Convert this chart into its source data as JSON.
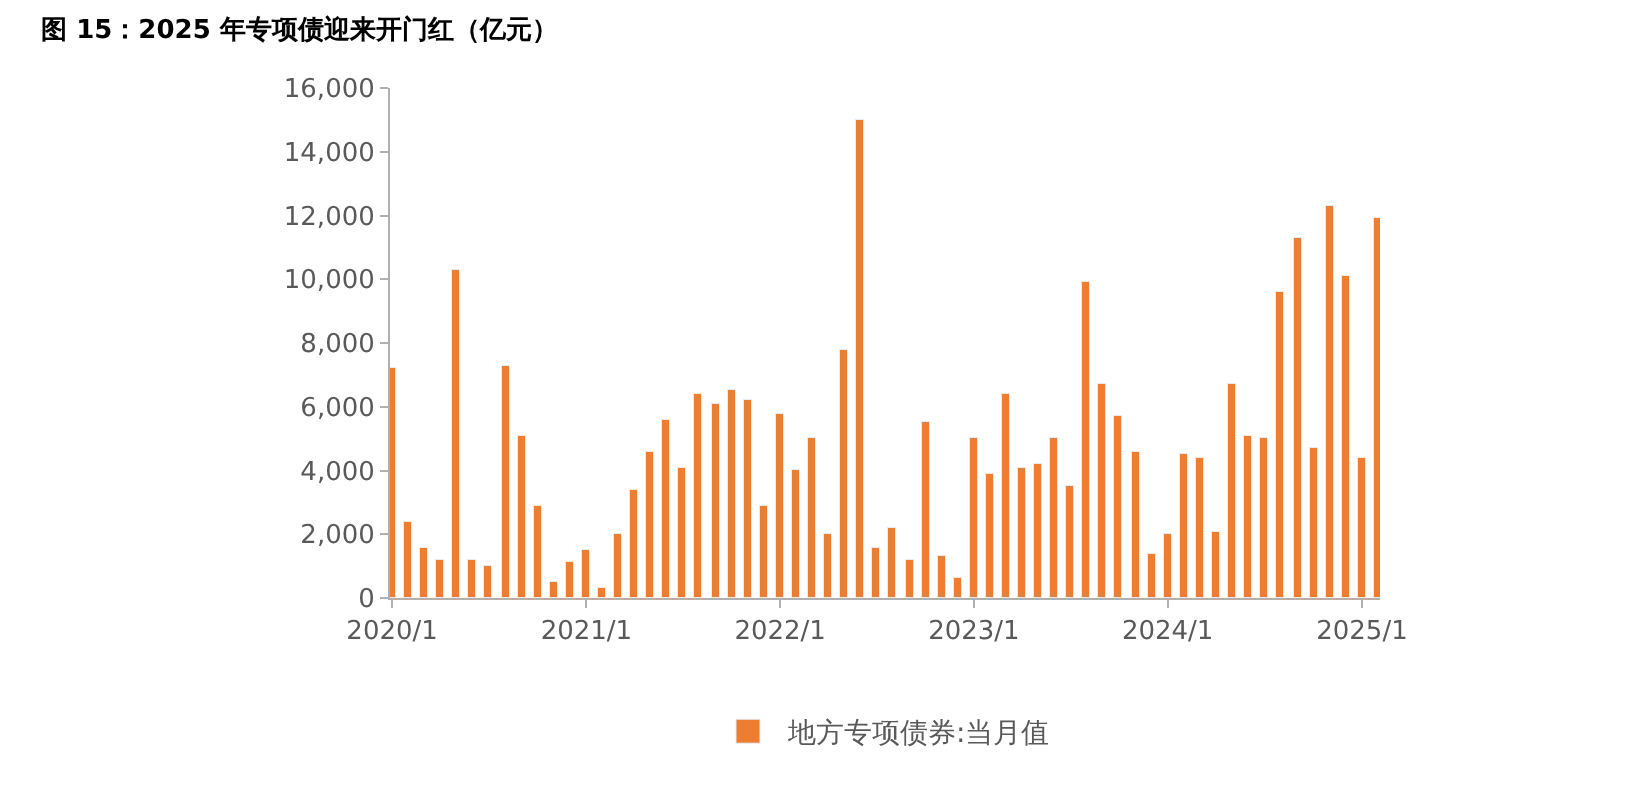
{
  "chart_data": {
    "type": "bar",
    "title": "图 15：2025 年专项债迎来开门红（亿元）",
    "x": [
      "2020-01",
      "2020-02",
      "2020-03",
      "2020-04",
      "2020-05",
      "2020-06",
      "2020-07",
      "2020-08",
      "2020-09",
      "2020-10",
      "2020-11",
      "2020-12",
      "2021-01",
      "2021-02",
      "2021-03",
      "2021-04",
      "2021-05",
      "2021-06",
      "2021-07",
      "2021-08",
      "2021-09",
      "2021-10",
      "2021-11",
      "2021-12",
      "2022-01",
      "2022-02",
      "2022-03",
      "2022-04",
      "2022-05",
      "2022-06",
      "2022-07",
      "2022-08",
      "2022-09",
      "2022-10",
      "2022-11",
      "2022-12",
      "2023-01",
      "2023-02",
      "2023-03",
      "2023-04",
      "2023-05",
      "2023-06",
      "2023-07",
      "2023-08",
      "2023-09",
      "2023-10",
      "2023-11",
      "2023-12",
      "2024-01",
      "2024-02",
      "2024-03",
      "2024-04",
      "2024-05",
      "2024-06",
      "2024-07",
      "2024-08",
      "2024-09",
      "2024-10",
      "2024-11",
      "2024-12",
      "2025-01",
      "2025-02"
    ],
    "series": [
      {
        "name": "地方专项债券:当月值",
        "color": "#ed7d31",
        "values": [
          7200,
          2400,
          1600,
          1200,
          10300,
          1200,
          1000,
          7300,
          5100,
          2900,
          500,
          1100,
          1500,
          300,
          2000,
          3400,
          4600,
          5600,
          4100,
          6400,
          6100,
          6500,
          6200,
          2900,
          5800,
          4000,
          5000,
          2000,
          7800,
          15000,
          1600,
          2200,
          1200,
          5500,
          1300,
          600,
          5000,
          3900,
          6400,
          4100,
          4200,
          5000,
          3500,
          9900,
          6700,
          5700,
          4600,
          1400,
          2000,
          4500,
          4400,
          2100,
          6700,
          5100,
          5000,
          9600,
          11300,
          4700,
          12300,
          10100,
          4400,
          11900
        ]
      }
    ],
    "xlim": [
      "2019-12-28",
      "2025-02-04"
    ],
    "xticks": [
      {
        "value": "2020-01",
        "label": "2020/1"
      },
      {
        "value": "2021-01",
        "label": "2021/1"
      },
      {
        "value": "2022-01",
        "label": "2022/1"
      },
      {
        "value": "2023-01",
        "label": "2023/1"
      },
      {
        "value": "2024-01",
        "label": "2024/1"
      },
      {
        "value": "2025-01",
        "label": "2025/1"
      }
    ],
    "ylim": [
      0,
      16000
    ],
    "yticks": [
      0,
      {
        "value": 2000,
        "label": "2,000"
      },
      {
        "value": 4000,
        "label": "4,000"
      },
      {
        "value": 6000,
        "label": "6,000"
      },
      {
        "value": 8000,
        "label": "8,000"
      },
      {
        "value": 10000,
        "label": "10,000"
      },
      {
        "value": 12000,
        "label": "12,000"
      },
      {
        "value": 14000,
        "label": "14,000"
      },
      {
        "value": 16000,
        "label": "16,000"
      }
    ],
    "legend": "bottom"
  }
}
